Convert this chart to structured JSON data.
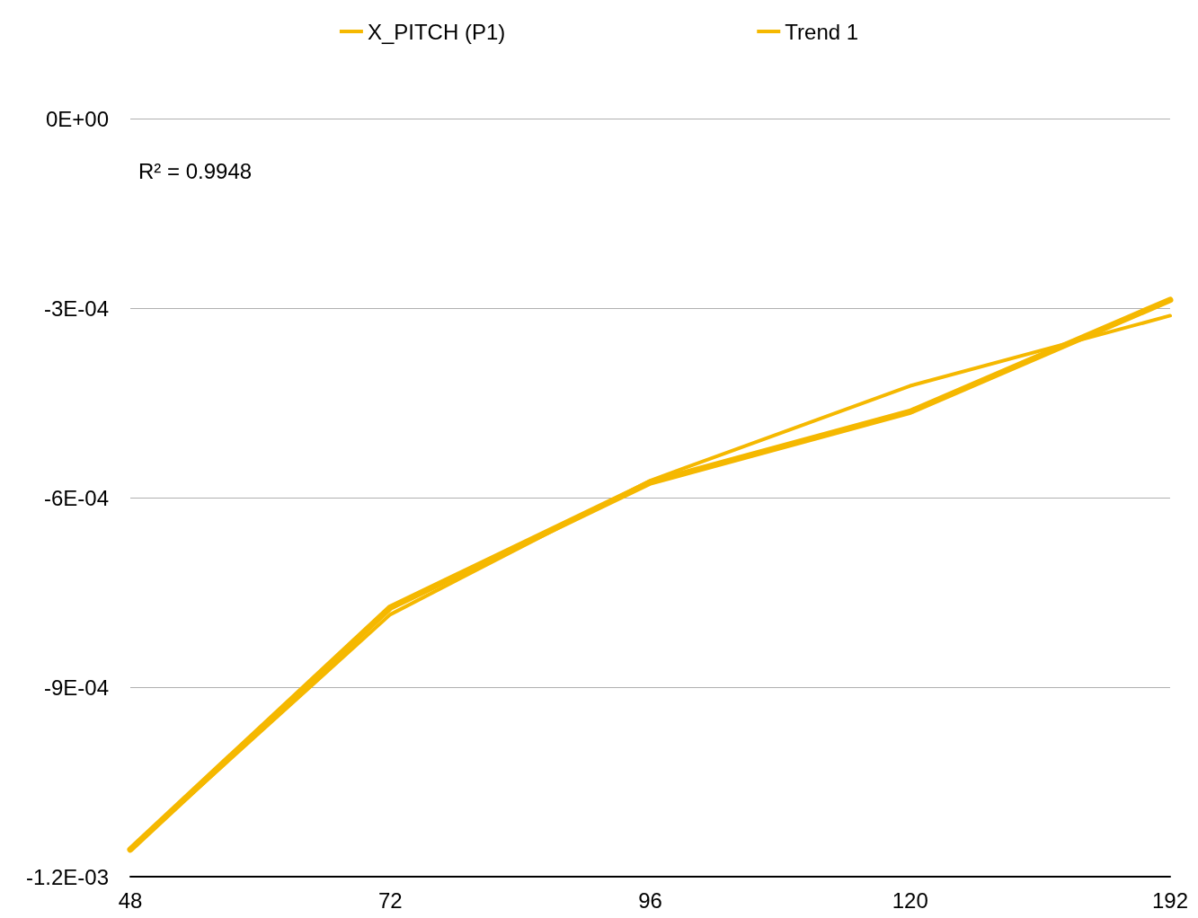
{
  "chart_data": {
    "type": "line",
    "categories": [
      "48",
      "72",
      "96",
      "120",
      "192"
    ],
    "series": [
      {
        "name": "X_PITCH (P1)",
        "color": "#f5b800",
        "values": [
          -0.001157,
          -0.000774,
          -0.000576,
          -0.000464,
          -0.000287
        ]
      },
      {
        "name": "Trend 1",
        "color": "#f5b800",
        "values": [
          -0.001157,
          -0.000785,
          -0.000573,
          -0.000423,
          -0.000312
        ]
      }
    ],
    "ylim": [
      -0.0012,
      0
    ],
    "yticks": [
      {
        "value": -0.0012,
        "label": "-1.2E-03"
      },
      {
        "value": -0.0009,
        "label": "-9E-04"
      },
      {
        "value": -0.0006,
        "label": "-6E-04"
      },
      {
        "value": -0.0003,
        "label": "-3E-04"
      },
      {
        "value": 0,
        "label": "0E+00"
      }
    ],
    "annotations": [
      "R² = 0.9948"
    ],
    "grid": "y",
    "legend": "top",
    "marker": "none",
    "line_style": "solid"
  }
}
